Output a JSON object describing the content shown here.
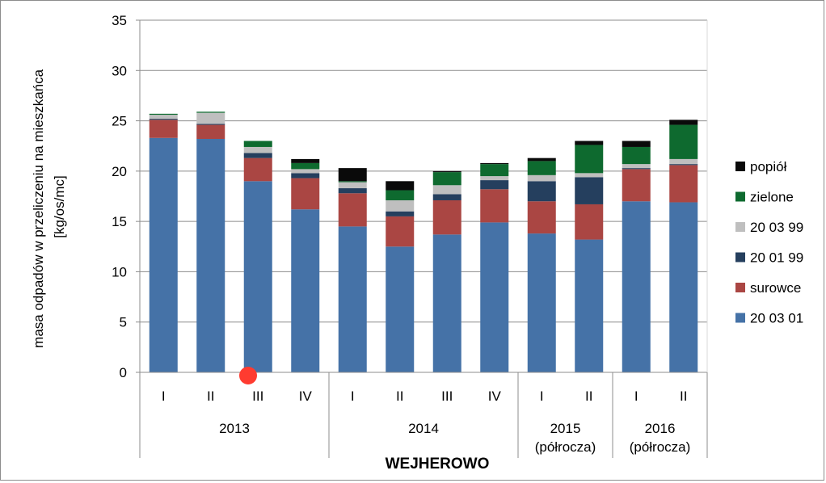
{
  "chart_data": {
    "type": "bar",
    "stacked": true,
    "title": "",
    "xlabel": "WEJHEROWO",
    "ylabel": "masa odpadów w przeliczeniu na mieszkańca [kg/os/mc]",
    "ylabel_lines": [
      "masa odpadów w przeliczeniu na mieszkańca",
      "[kg/os/mc]"
    ],
    "ylim": [
      0,
      35
    ],
    "yticks": [
      0,
      5,
      10,
      15,
      20,
      25,
      30,
      35
    ],
    "grid": true,
    "legend_position": "right",
    "categories": [
      "I",
      "II",
      "III",
      "IV",
      "I",
      "II",
      "III",
      "IV",
      "I",
      "II",
      "I",
      "II"
    ],
    "groups": [
      {
        "label_lines": [
          "2013"
        ],
        "count": 4
      },
      {
        "label_lines": [
          "2014"
        ],
        "count": 4
      },
      {
        "label_lines": [
          "2015",
          "(półrocza)"
        ],
        "count": 2
      },
      {
        "label_lines": [
          "2016",
          "(półrocza)"
        ],
        "count": 2
      }
    ],
    "series": [
      {
        "name": "20 03 01",
        "color": "#4572A7",
        "values": [
          23.3,
          23.2,
          19.0,
          16.2,
          14.5,
          12.5,
          13.7,
          14.9,
          13.8,
          13.2,
          17.0,
          16.9
        ]
      },
      {
        "name": "surowce",
        "color": "#AA4643",
        "values": [
          1.8,
          1.4,
          2.3,
          3.1,
          3.3,
          3.0,
          3.4,
          3.3,
          3.2,
          3.5,
          3.2,
          3.7
        ]
      },
      {
        "name": "20 01 99",
        "color": "#253F5E",
        "values": [
          0.1,
          0.1,
          0.5,
          0.5,
          0.5,
          0.5,
          0.6,
          0.9,
          2.0,
          2.7,
          0.1,
          0.1
        ]
      },
      {
        "name": "20 03 99",
        "color": "#BFBFBF",
        "values": [
          0.4,
          1.1,
          0.6,
          0.4,
          0.6,
          1.1,
          0.9,
          0.4,
          0.6,
          0.4,
          0.4,
          0.5
        ]
      },
      {
        "name": "zielone",
        "color": "#0E6A2F",
        "values": [
          0.1,
          0.1,
          0.6,
          0.6,
          0.1,
          1.0,
          1.3,
          1.2,
          1.4,
          2.8,
          1.7,
          3.4
        ]
      },
      {
        "name": "popiół",
        "color": "#0A0A0A",
        "values": [
          0.0,
          0.0,
          0.0,
          0.4,
          1.3,
          0.9,
          0.1,
          0.1,
          0.3,
          0.4,
          0.6,
          0.5
        ]
      }
    ],
    "legend_order": [
      "popiół",
      "zielone",
      "20 03 99",
      "20 01 99",
      "surowce",
      "20 03 01"
    ]
  },
  "marker_color": "#FF3B30"
}
